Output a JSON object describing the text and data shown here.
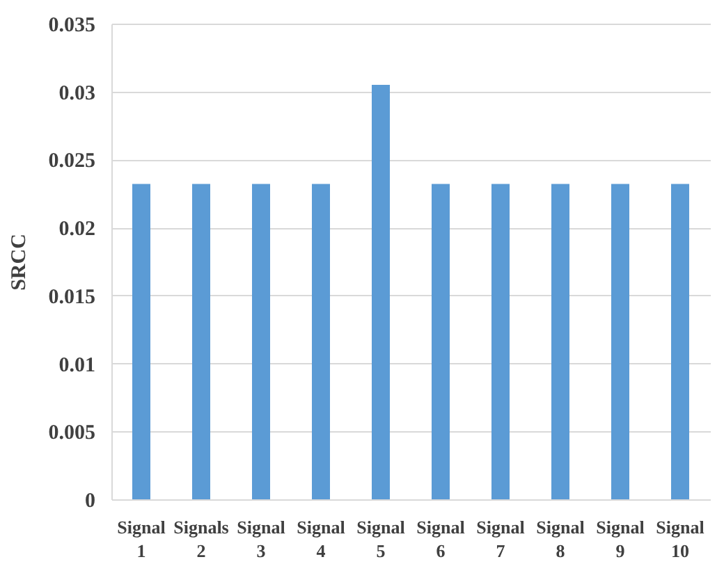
{
  "chart_data": {
    "type": "bar",
    "ylabel": "SRCC",
    "categories": [
      "Signal 1",
      "Signals 2",
      "Signal 3",
      "Signal 4",
      "Signal 5",
      "Signal 6",
      "Signal 7",
      "Signal 8",
      "Signal 9",
      "Signal 10"
    ],
    "values": [
      0.0232,
      0.0232,
      0.0232,
      0.0232,
      0.0305,
      0.0232,
      0.0232,
      0.0232,
      0.0232,
      0.0232
    ],
    "color": "#5b9bd5",
    "ylim": [
      0,
      0.035
    ],
    "yticks": [
      0,
      0.005,
      0.01,
      0.015,
      0.02,
      0.025,
      0.03,
      0.035
    ],
    "grid": "y"
  }
}
